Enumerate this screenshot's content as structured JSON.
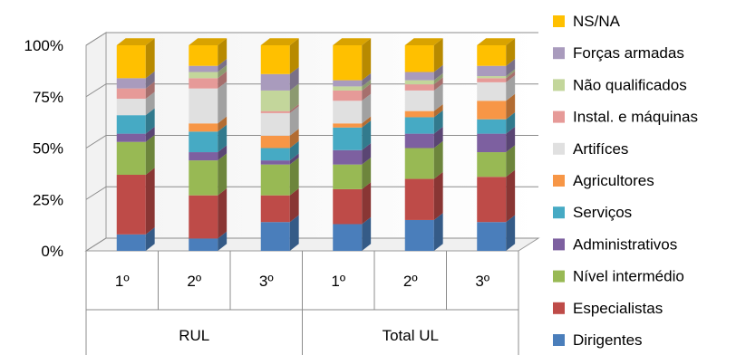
{
  "chart_data": {
    "type": "bar",
    "subtype": "stacked-100-percent-3d",
    "groups": [
      {
        "label": "RUL",
        "categories": [
          "1º",
          "2º",
          "3º"
        ]
      },
      {
        "label": "Total UL",
        "categories": [
          "1º",
          "2º",
          "3º"
        ]
      }
    ],
    "y_ticks": [
      "0%",
      "25%",
      "50%",
      "75%",
      "100%"
    ],
    "ylim": [
      0,
      100
    ],
    "grid": true,
    "legend_position": "right",
    "series": [
      {
        "name": "Dirigentes",
        "color": "#4a7ebb",
        "values": [
          8,
          6,
          14,
          13,
          15,
          14
        ]
      },
      {
        "name": "Especialistas",
        "color": "#be4b48",
        "values": [
          29,
          21,
          13,
          17,
          20,
          22
        ]
      },
      {
        "name": "Nível intermédio",
        "color": "#98b954",
        "values": [
          16,
          17,
          15,
          12,
          15,
          12
        ]
      },
      {
        "name": "Administrativos",
        "color": "#7d60a0",
        "values": [
          4,
          4,
          2,
          7,
          7,
          9
        ]
      },
      {
        "name": "Serviços",
        "color": "#46aac4",
        "values": [
          9,
          10,
          6,
          11,
          8,
          7
        ]
      },
      {
        "name": "Agricultores",
        "color": "#f79646",
        "values": [
          0,
          4,
          6,
          2,
          3,
          9
        ]
      },
      {
        "name": "Artifíces",
        "color": "#e0e0e0",
        "values": [
          8,
          17,
          11,
          11,
          10,
          9
        ]
      },
      {
        "name": "Instal. e máquinas",
        "color": "#e69a98",
        "values": [
          5,
          5,
          1,
          5,
          3,
          2
        ]
      },
      {
        "name": "Não qualificados",
        "color": "#c3d69b",
        "values": [
          0,
          3,
          10,
          2,
          2,
          1
        ]
      },
      {
        "name": "Forças armadas",
        "color": "#a99bbd",
        "values": [
          5,
          3,
          8,
          3,
          4,
          5
        ]
      },
      {
        "name": "NS/NA",
        "color": "#ffc000",
        "values": [
          16,
          10,
          14,
          17,
          13,
          10
        ]
      }
    ]
  }
}
